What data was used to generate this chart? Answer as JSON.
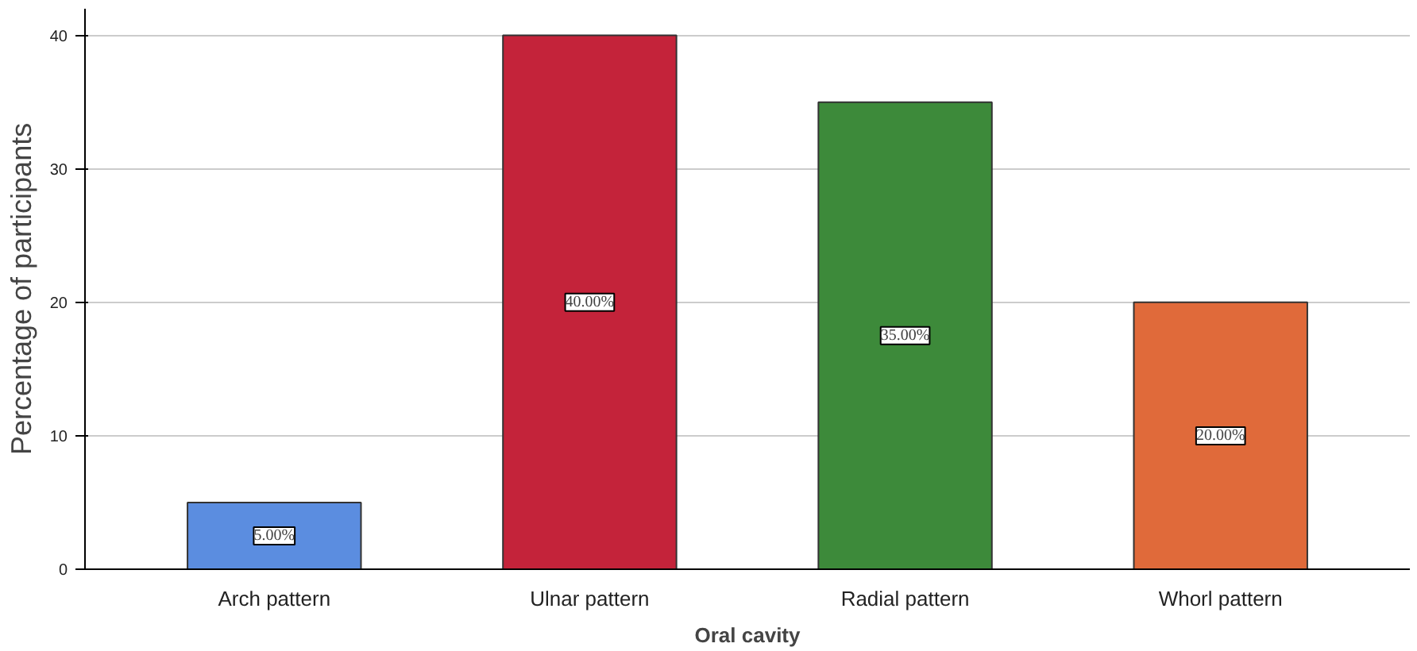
{
  "chart_data": {
    "type": "bar",
    "xlabel": "Oral cavity",
    "ylabel": "Percentage of participants",
    "categories": [
      "Arch pattern",
      "Ulnar pattern",
      "Radial pattern",
      "Whorl pattern"
    ],
    "values": [
      5,
      40,
      35,
      20
    ],
    "colors": [
      "#5b8de0",
      "#c4233a",
      "#3d8a3a",
      "#e06a3a"
    ],
    "value_labels": [
      "5.00%",
      "40.00%",
      "35.00%",
      "20.00%"
    ],
    "ylim": [
      0,
      42
    ],
    "yticks": [
      0,
      10,
      20,
      30,
      40
    ],
    "grid": "y"
  }
}
